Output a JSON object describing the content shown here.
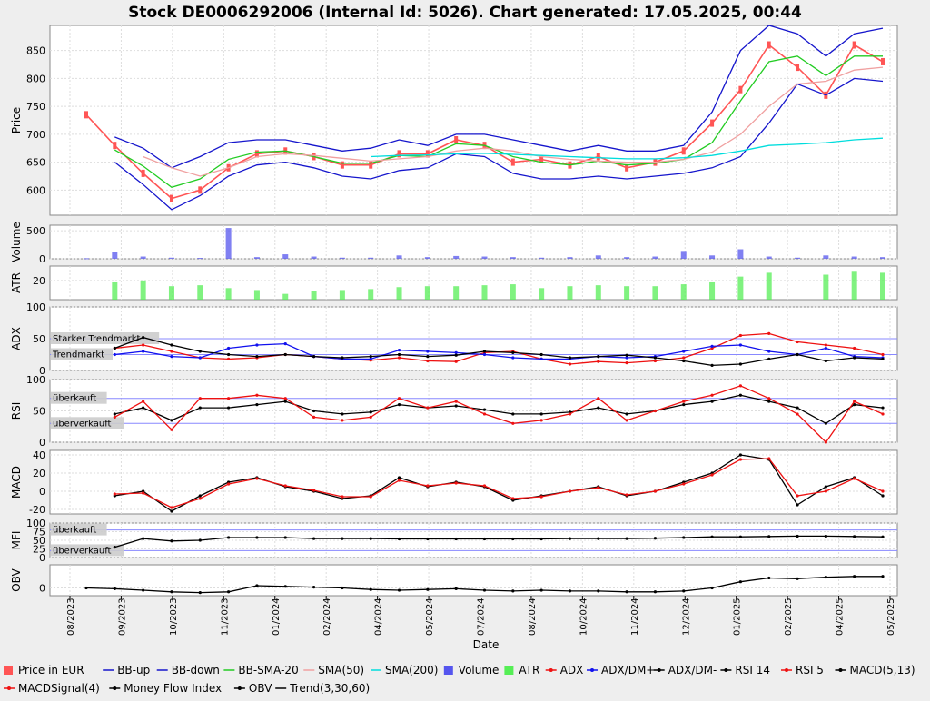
{
  "title": "Stock DE0006292006 (Internal Id: 5026). Chart generated: 17.05.2025, 00:44",
  "xlabel": "Date",
  "x_ticks": [
    "08/2023",
    "09/2023",
    "10/2023",
    "11/2023",
    "01/2024",
    "02/2024",
    "04/2024",
    "05/2024",
    "07/2024",
    "08/2024",
    "10/2024",
    "11/2024",
    "12/2024",
    "01/2025",
    "02/2025",
    "04/2025",
    "05/2025"
  ],
  "colors": {
    "price_up": "#ff5555",
    "bb_band": "#1515cc",
    "bb_sma": "#22cc22",
    "sma50": "#f0a0a0",
    "sma200": "#00dddd",
    "volume": "#5555ee",
    "atr": "#55ee55",
    "adx": "#ee1111",
    "dm_plus": "#1111ee",
    "dm_minus": "#000000",
    "rsi14": "#000000",
    "rsi5": "#ee1111",
    "macd": "#000000",
    "macd_signal": "#ee1111",
    "mfi": "#000000",
    "obv": "#000000",
    "trend": "#000000",
    "ref_line": "#8888ff",
    "label_box": "#cccccc"
  },
  "legend": [
    {
      "label": "Price in EUR",
      "symbol": "box",
      "color": "#ff5555"
    },
    {
      "label": "BB-up",
      "symbol": "line",
      "color": "#1515cc"
    },
    {
      "label": "BB-down",
      "symbol": "line",
      "color": "#1515cc"
    },
    {
      "label": "BB-SMA-20",
      "symbol": "line",
      "color": "#22cc22"
    },
    {
      "label": "SMA(50)",
      "symbol": "line",
      "color": "#f0a0a0"
    },
    {
      "label": "SMA(200)",
      "symbol": "line",
      "color": "#00dddd"
    },
    {
      "label": "Volume",
      "symbol": "box",
      "color": "#5555ee"
    },
    {
      "label": "ATR",
      "symbol": "box",
      "color": "#55ee55"
    },
    {
      "label": "ADX",
      "symbol": "marker",
      "color": "#ee1111"
    },
    {
      "label": "ADX/DM+",
      "symbol": "marker",
      "color": "#1111ee"
    },
    {
      "label": "ADX/DM-",
      "symbol": "marker",
      "color": "#000000"
    },
    {
      "label": "RSI 14",
      "symbol": "marker",
      "color": "#000000"
    },
    {
      "label": "RSI 5",
      "symbol": "marker",
      "color": "#ee1111"
    },
    {
      "label": "MACD(5,13)",
      "symbol": "marker",
      "color": "#000000"
    },
    {
      "label": "MACDSignal(4)",
      "symbol": "marker",
      "color": "#ee1111"
    },
    {
      "label": "Money Flow Index",
      "symbol": "marker",
      "color": "#000000"
    },
    {
      "label": "OBV",
      "symbol": "marker",
      "color": "#000000"
    },
    {
      "label": "Trend(3,30,60)",
      "symbol": "line",
      "color": "#000000"
    }
  ],
  "chart_data": [
    {
      "type": "line",
      "title": "Stock DE0006292006 (Internal Id: 5026). Chart generated: 17.05.2025, 00:44",
      "ylabel": "Price",
      "ylim": [
        555,
        895
      ],
      "yticks": [
        600,
        650,
        700,
        750,
        800,
        850
      ],
      "x": [
        "2023-08-25",
        "2023-09-15",
        "2023-10-05",
        "2023-10-15",
        "2023-11-01",
        "2023-11-20",
        "2023-12-10",
        "2024-01-01",
        "2024-01-25",
        "2024-02-15",
        "2024-03-10",
        "2024-04-01",
        "2024-05-01",
        "2024-06-01",
        "2024-07-01",
        "2024-08-01",
        "2024-09-01",
        "2024-10-01",
        "2024-11-01",
        "2024-12-01",
        "2025-01-01",
        "2025-01-25",
        "2025-02-10",
        "2025-02-25",
        "2025-03-10",
        "2025-03-25",
        "2025-04-10",
        "2025-04-25",
        "2025-05-15"
      ],
      "series": [
        {
          "name": "Price in EUR",
          "values": [
            735,
            680,
            630,
            585,
            600,
            640,
            665,
            670,
            660,
            645,
            645,
            665,
            665,
            690,
            680,
            650,
            655,
            645,
            660,
            640,
            650,
            670,
            720,
            780,
            860,
            820,
            770,
            860,
            830
          ]
        },
        {
          "name": "BB-up",
          "values": [
            null,
            695,
            675,
            640,
            660,
            685,
            690,
            690,
            680,
            670,
            675,
            690,
            680,
            700,
            700,
            690,
            680,
            670,
            680,
            670,
            670,
            680,
            740,
            850,
            895,
            880,
            840,
            880,
            890
          ]
        },
        {
          "name": "BB-down",
          "values": [
            null,
            650,
            610,
            565,
            590,
            625,
            645,
            650,
            640,
            625,
            620,
            635,
            640,
            665,
            660,
            630,
            620,
            620,
            625,
            620,
            625,
            630,
            640,
            660,
            720,
            790,
            770,
            800,
            795
          ]
        },
        {
          "name": "BB-SMA-20",
          "values": [
            null,
            672,
            643,
            605,
            620,
            655,
            668,
            670,
            660,
            648,
            648,
            662,
            660,
            683,
            680,
            660,
            650,
            645,
            652,
            645,
            648,
            655,
            685,
            760,
            830,
            840,
            805,
            840,
            840
          ]
        },
        {
          "name": "SMA(50)",
          "values": [
            null,
            null,
            660,
            640,
            625,
            640,
            660,
            665,
            662,
            657,
            652,
            656,
            660,
            670,
            675,
            670,
            660,
            655,
            652,
            650,
            650,
            655,
            668,
            700,
            750,
            790,
            795,
            815,
            820
          ]
        },
        {
          "name": "SMA(200)",
          "values": [
            null,
            null,
            null,
            null,
            null,
            null,
            null,
            null,
            null,
            null,
            660,
            662,
            663,
            665,
            666,
            664,
            662,
            660,
            658,
            656,
            656,
            658,
            662,
            670,
            680,
            682,
            685,
            690,
            693
          ]
        }
      ]
    },
    {
      "type": "bar",
      "ylabel": "Volume",
      "ylim": [
        0,
        600
      ],
      "yticks": [
        0,
        500
      ],
      "series": [
        {
          "name": "Volume",
          "values": [
            10,
            120,
            40,
            20,
            15,
            550,
            30,
            80,
            40,
            20,
            20,
            60,
            30,
            50,
            40,
            30,
            20,
            30,
            60,
            30,
            40,
            140,
            60,
            170,
            40,
            20,
            60,
            40,
            30
          ]
        }
      ]
    },
    {
      "type": "bar",
      "ylabel": "ATR",
      "ylim": [
        0,
        35
      ],
      "yticks": [
        20
      ],
      "series": [
        {
          "name": "ATR",
          "values": [
            null,
            18,
            20,
            14,
            15,
            12,
            10,
            6,
            9,
            10,
            11,
            13,
            14,
            14,
            15,
            16,
            12,
            14,
            15,
            14,
            14,
            16,
            18,
            24,
            28,
            null,
            26,
            30,
            28
          ]
        }
      ]
    },
    {
      "type": "line",
      "ylabel": "ADX",
      "ylim": [
        0,
        100
      ],
      "yticks": [
        0,
        50,
        100
      ],
      "series": [
        {
          "name": "ADX",
          "values": [
            null,
            35,
            40,
            30,
            20,
            18,
            20,
            25,
            22,
            18,
            16,
            20,
            15,
            14,
            28,
            30,
            18,
            10,
            14,
            12,
            15,
            20,
            35,
            55,
            58,
            45,
            40,
            35,
            25
          ]
        },
        {
          "name": "ADX/DM+",
          "values": [
            null,
            25,
            30,
            22,
            20,
            35,
            40,
            42,
            22,
            18,
            18,
            32,
            30,
            28,
            25,
            20,
            18,
            18,
            22,
            20,
            22,
            30,
            38,
            40,
            30,
            25,
            35,
            22,
            20
          ]
        },
        {
          "name": "ADX/DM-",
          "values": [
            null,
            35,
            52,
            40,
            30,
            25,
            22,
            25,
            22,
            20,
            22,
            25,
            22,
            24,
            30,
            28,
            25,
            20,
            22,
            24,
            20,
            15,
            8,
            10,
            18,
            25,
            15,
            20,
            18
          ]
        }
      ]
    },
    {
      "type": "line",
      "ylabel": "RSI",
      "ylim": [
        0,
        100
      ],
      "yticks": [
        0,
        50,
        100
      ],
      "series": [
        {
          "name": "RSI 14",
          "values": [
            null,
            45,
            55,
            35,
            55,
            55,
            60,
            65,
            50,
            45,
            48,
            60,
            55,
            58,
            52,
            45,
            45,
            48,
            55,
            45,
            50,
            60,
            65,
            75,
            65,
            55,
            30,
            60,
            55
          ]
        },
        {
          "name": "RSI 5",
          "values": [
            null,
            40,
            65,
            20,
            70,
            70,
            75,
            70,
            40,
            35,
            40,
            70,
            55,
            65,
            45,
            30,
            35,
            45,
            70,
            35,
            50,
            65,
            75,
            90,
            70,
            45,
            0,
            65,
            45
          ]
        }
      ]
    },
    {
      "type": "line",
      "ylabel": "MACD",
      "ylim": [
        -25,
        45
      ],
      "yticks": [
        -20,
        0,
        20,
        40
      ],
      "series": [
        {
          "name": "MACD(5,13)",
          "values": [
            null,
            -5,
            0,
            -22,
            -5,
            10,
            15,
            5,
            0,
            -8,
            -5,
            15,
            5,
            10,
            5,
            -10,
            -5,
            0,
            5,
            -5,
            0,
            10,
            20,
            40,
            35,
            -15,
            5,
            15,
            -5
          ]
        },
        {
          "name": "MACDSignal(4)",
          "values": [
            null,
            -3,
            -2,
            -18,
            -8,
            8,
            14,
            6,
            1,
            -6,
            -6,
            12,
            6,
            9,
            6,
            -8,
            -6,
            0,
            4,
            -4,
            0,
            8,
            18,
            35,
            36,
            -5,
            0,
            14,
            0
          ]
        }
      ]
    },
    {
      "type": "line",
      "ylabel": "MFI",
      "ylim": [
        0,
        100
      ],
      "yticks": [
        0,
        25,
        50,
        75,
        100
      ],
      "series": [
        {
          "name": "Money Flow Index",
          "values": [
            null,
            30,
            55,
            48,
            50,
            58,
            58,
            58,
            55,
            55,
            55,
            54,
            54,
            54,
            54,
            54,
            54,
            55,
            55,
            55,
            56,
            58,
            60,
            60,
            61,
            62,
            62,
            61,
            60
          ]
        }
      ]
    },
    {
      "type": "line",
      "ylabel": "OBV",
      "ylim": [
        -1,
        3
      ],
      "yticks": [
        0
      ],
      "series": [
        {
          "name": "OBV",
          "values": [
            0,
            -0.1,
            -0.3,
            -0.5,
            -0.6,
            -0.5,
            0.3,
            0.2,
            0.1,
            0.0,
            -0.2,
            -0.3,
            -0.2,
            -0.1,
            -0.3,
            -0.4,
            -0.3,
            -0.4,
            -0.4,
            -0.5,
            -0.5,
            -0.4,
            0.0,
            0.8,
            1.3,
            1.2,
            1.4,
            1.5,
            1.5
          ]
        }
      ]
    }
  ],
  "annotations": {
    "adx_strong": "Starker Trendmarkt",
    "adx_trend": "Trendmarkt",
    "rsi_over": "überkauft",
    "rsi_under": "überverkauft",
    "mfi_over": "überkauft",
    "mfi_under": "überverkauft"
  }
}
